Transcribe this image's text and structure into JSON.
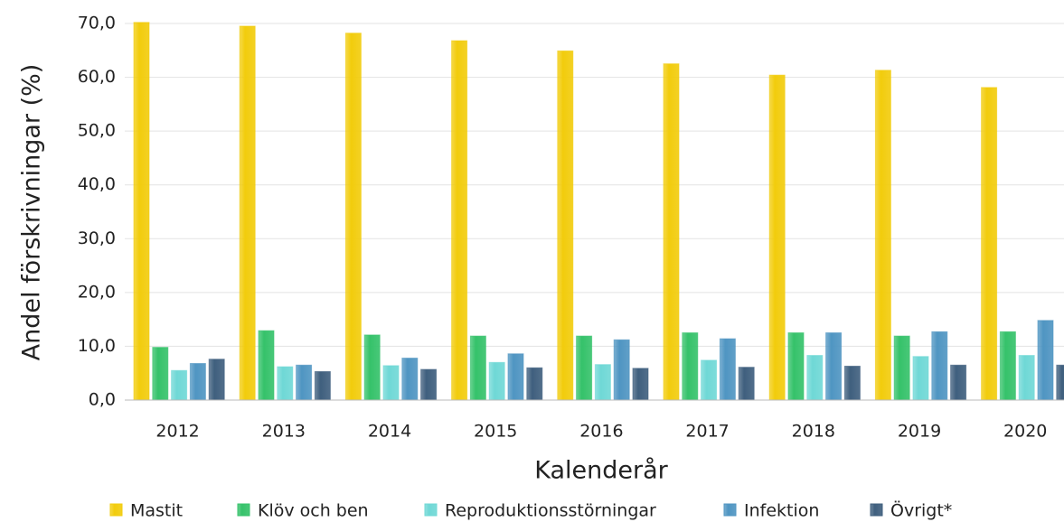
{
  "chart_data": {
    "type": "bar",
    "xlabel": "Kalenderår",
    "ylabel": "Andel förskrivningar (%)",
    "categories": [
      "2012",
      "2013",
      "2014",
      "2015",
      "2016",
      "2017",
      "2018",
      "2019",
      "2020"
    ],
    "series": [
      {
        "name": "Mastit",
        "color": "#f2cc0c",
        "values": [
          70.2,
          69.5,
          68.2,
          66.8,
          64.9,
          62.5,
          60.4,
          61.3,
          58.1
        ]
      },
      {
        "name": "Klöv och ben",
        "color": "#35c26a",
        "values": [
          9.8,
          12.9,
          12.1,
          11.9,
          11.9,
          12.5,
          12.5,
          11.9,
          12.7
        ]
      },
      {
        "name": "Reproduktionsstörningar",
        "color": "#6fd8d6",
        "values": [
          5.5,
          6.2,
          6.4,
          7.0,
          6.6,
          7.4,
          8.3,
          8.1,
          8.3
        ]
      },
      {
        "name": "Infektion",
        "color": "#4f95c2",
        "values": [
          6.8,
          6.5,
          7.8,
          8.6,
          11.2,
          11.4,
          12.5,
          12.7,
          14.8
        ]
      },
      {
        "name": "Övrigt*",
        "color": "#3f5f7e",
        "values": [
          7.6,
          5.3,
          5.7,
          6.0,
          5.9,
          6.1,
          6.3,
          6.5,
          6.5
        ]
      }
    ],
    "ylim": [
      0,
      70
    ],
    "yticks": [
      {
        "value": 0,
        "label": "0,0"
      },
      {
        "value": 10,
        "label": "10,0"
      },
      {
        "value": 20,
        "label": "20,0"
      },
      {
        "value": 30,
        "label": "30,0"
      },
      {
        "value": 40,
        "label": "40,0"
      },
      {
        "value": 50,
        "label": "50,0"
      },
      {
        "value": 60,
        "label": "60,0"
      },
      {
        "value": 70,
        "label": "70,0"
      }
    ],
    "grid": true,
    "legend": "bottom"
  }
}
